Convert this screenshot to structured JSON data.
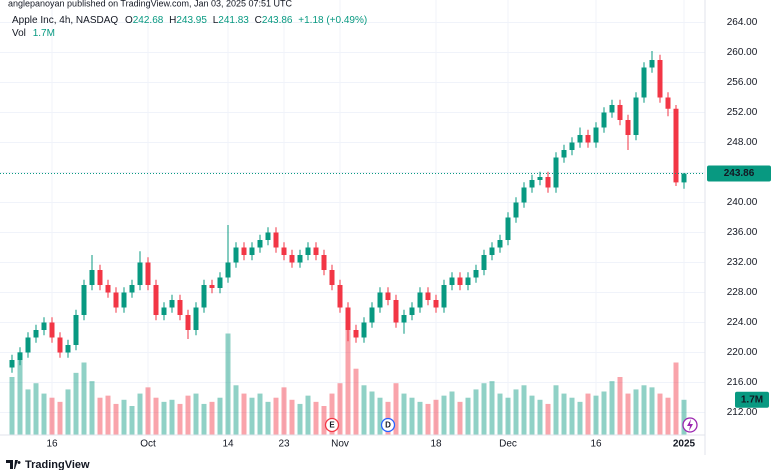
{
  "published": "anglepanoyan published on TradingView.com, Jan 03, 2025 07:51 UTC",
  "footer": {
    "brand": "TradingView"
  },
  "chart_data": {
    "type": "candlestick",
    "title": "Apple Inc, 4h, NASDAQ",
    "ohlc_prefixes": [
      "O",
      "H",
      "L",
      "C"
    ],
    "change": "+1.18 (+0.49%)",
    "volume_title": "Vol",
    "volume_value_label": "1.7M",
    "up_color": "#089981",
    "down_color": "#f23645",
    "open": [
      218,
      219,
      220,
      222,
      223,
      224,
      222,
      220,
      221,
      225,
      229,
      231,
      229,
      228,
      226,
      228,
      229,
      232,
      229,
      225,
      226,
      227,
      225,
      223,
      226,
      229,
      228.6,
      230,
      232,
      234,
      233,
      234,
      235,
      236,
      234,
      233,
      232,
      233,
      234,
      233,
      231,
      229,
      226,
      223,
      222,
      224,
      226,
      228,
      227,
      224,
      225,
      226,
      228,
      227,
      226,
      229,
      230,
      229,
      230,
      231,
      233,
      234,
      235,
      238,
      240,
      242,
      243,
      243.4,
      242,
      246,
      247,
      248,
      249,
      248,
      250,
      252,
      253,
      251,
      249,
      254,
      258,
      259,
      254,
      252.5,
      242.68
    ],
    "high": [
      219.7,
      220.7,
      222.7,
      223.7,
      224.7,
      224.7,
      222.7,
      221.7,
      225.7,
      229.7,
      233,
      231.7,
      229.7,
      228.7,
      228.7,
      229.7,
      233.5,
      232.7,
      229.7,
      226.7,
      227.7,
      227.7,
      225.7,
      226.7,
      229.7,
      229.7,
      230.7,
      237,
      234.7,
      234.7,
      234.7,
      235.7,
      236.7,
      236.7,
      234.7,
      233.7,
      233.7,
      234.7,
      234.7,
      233.7,
      231.7,
      229.7,
      226.7,
      223.7,
      224.7,
      226.7,
      228.7,
      228.7,
      227.7,
      225.7,
      226.7,
      228.7,
      228.7,
      227.7,
      229.7,
      230.7,
      230.7,
      230.7,
      231.7,
      233.7,
      234.7,
      235.7,
      238.7,
      240.7,
      242.7,
      243.7,
      244.1,
      244.1,
      246.7,
      247.7,
      248.7,
      250,
      249.7,
      250.7,
      252.7,
      253.7,
      253.7,
      251.7,
      254.7,
      258.7,
      260.2,
      259.7,
      254.7,
      253,
      243.95
    ],
    "low": [
      217.3,
      218.3,
      219.3,
      221.3,
      222.3,
      221.3,
      219.3,
      219.3,
      220.3,
      224.3,
      228.3,
      228.3,
      227.3,
      225.3,
      225.3,
      227.3,
      228.3,
      228.3,
      224.3,
      224.3,
      225.3,
      224.3,
      221.8,
      222.3,
      225.3,
      227.9,
      227.9,
      229.3,
      231.3,
      232.3,
      232.3,
      233.3,
      234.3,
      233.3,
      232.3,
      231.3,
      231.3,
      232.3,
      232.3,
      230.3,
      228.3,
      225.3,
      221.5,
      221.3,
      221.3,
      223.3,
      225.3,
      226.3,
      223.3,
      222.5,
      224.3,
      225.3,
      226.3,
      225.3,
      225.3,
      228.3,
      228.3,
      228.3,
      229.3,
      230.3,
      232.3,
      233.3,
      234.3,
      237.3,
      239.3,
      241.3,
      242.3,
      241.3,
      241.3,
      245.3,
      246.3,
      247.3,
      247.3,
      247.3,
      249.3,
      251.3,
      250.3,
      247,
      248.3,
      253.3,
      257.3,
      253.3,
      251.5,
      242.2,
      241.83
    ],
    "close": [
      219,
      220,
      222,
      223,
      224,
      222,
      220,
      221,
      225,
      229,
      231,
      229,
      228,
      226,
      228,
      229,
      232,
      229,
      225,
      226,
      227,
      225,
      223,
      226,
      229,
      228.6,
      230,
      232,
      234,
      233,
      234,
      235,
      236,
      234,
      233,
      232,
      233,
      234,
      233,
      231,
      229,
      226,
      223,
      222,
      224,
      226,
      228,
      227,
      224,
      225,
      226,
      228,
      227,
      226,
      229,
      230,
      229,
      230,
      231,
      233,
      234,
      235,
      238,
      240,
      242,
      243,
      243.4,
      242,
      246,
      247,
      248,
      249,
      248,
      250,
      252,
      253,
      251,
      249,
      254,
      258,
      259,
      254,
      252.5,
      242.68,
      243.86
    ],
    "volume": [
      2.8,
      4.0,
      2.2,
      2.5,
      2.0,
      1.8,
      1.6,
      2.2,
      3.0,
      3.5,
      2.6,
      1.8,
      1.9,
      1.5,
      1.7,
      1.4,
      2.0,
      2.3,
      1.8,
      1.6,
      1.7,
      1.5,
      1.9,
      2.0,
      1.5,
      1.6,
      1.8,
      4.9,
      2.4,
      2.0,
      1.8,
      2.0,
      1.6,
      1.8,
      2.3,
      1.7,
      1.5,
      1.9,
      1.6,
      1.4,
      2.0,
      2.5,
      5.5,
      3.2,
      2.4,
      2.1,
      1.8,
      1.6,
      2.5,
      2.0,
      1.8,
      1.6,
      1.5,
      1.7,
      1.9,
      2.1,
      1.6,
      1.8,
      2.2,
      2.5,
      2.6,
      2.0,
      1.8,
      2.2,
      2.4,
      1.9,
      1.7,
      1.5,
      2.4,
      2.0,
      1.8,
      1.6,
      2.0,
      1.9,
      2.1,
      2.6,
      2.8,
      2.0,
      2.2,
      2.4,
      2.3,
      2.0,
      1.8,
      3.5,
      1.7
    ],
    "volume_lim": [
      0,
      21
    ],
    "ylim": [
      209,
      267
    ],
    "yticks": [
      {
        "value": 212,
        "label": "212.00"
      },
      {
        "value": 216,
        "label": "216.00"
      },
      {
        "value": 220,
        "label": "220.00"
      },
      {
        "value": 224,
        "label": "224.00"
      },
      {
        "value": 228,
        "label": "228.00"
      },
      {
        "value": 232,
        "label": "232.00"
      },
      {
        "value": 236,
        "label": "236.00"
      },
      {
        "value": 240,
        "label": "240.00"
      },
      {
        "value": 244,
        "label": "244.00"
      },
      {
        "value": 248,
        "label": "248.00"
      },
      {
        "value": 252,
        "label": "252.00"
      },
      {
        "value": 256,
        "label": "256.00"
      },
      {
        "value": 260,
        "label": "260.00"
      },
      {
        "value": 264,
        "label": "264.00"
      }
    ],
    "xticks": [
      {
        "value": 5,
        "label": "16"
      },
      {
        "value": 17,
        "label": "Oct"
      },
      {
        "value": 27,
        "label": "14"
      },
      {
        "value": 34,
        "label": "23"
      },
      {
        "value": 41,
        "label": "Nov"
      },
      {
        "value": 53,
        "label": "18"
      },
      {
        "value": 62,
        "label": "Dec"
      },
      {
        "value": 73,
        "label": "16"
      },
      {
        "value": 84,
        "label": "2025"
      }
    ],
    "events": [
      {
        "index": 40,
        "label": "E"
      },
      {
        "index": 47,
        "label": "D"
      }
    ],
    "grid": true
  }
}
